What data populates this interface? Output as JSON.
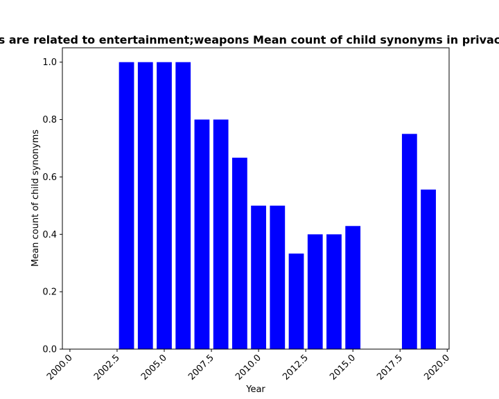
{
  "chart_data": {
    "type": "bar",
    "title": "...s are related to entertainment;weapons Mean count of child synonyms in privac...",
    "title_visible": "s are related to entertainment;weapons Mean count of child synonyms in privac",
    "xlabel": "Year",
    "ylabel": "Mean count of child synonyms",
    "x": [
      2003,
      2004,
      2005,
      2006,
      2007,
      2008,
      2009,
      2010,
      2011,
      2012,
      2013,
      2014,
      2015,
      2018,
      2019
    ],
    "values": [
      1.0,
      1.0,
      1.0,
      1.0,
      0.8,
      0.8,
      0.667,
      0.5,
      0.5,
      0.333,
      0.4,
      0.4,
      0.429,
      0.75,
      0.556
    ],
    "xlim": [
      1999.6,
      2020.1
    ],
    "ylim": [
      0,
      1.05
    ],
    "xticks": [
      "2000.0",
      "2002.5",
      "2005.0",
      "2007.5",
      "2010.0",
      "2012.5",
      "2015.0",
      "2017.5",
      "2020.0"
    ],
    "xtick_values": [
      2000.0,
      2002.5,
      2005.0,
      2007.5,
      2010.0,
      2012.5,
      2015.0,
      2017.5,
      2020.0
    ],
    "yticks": [
      "0.0",
      "0.2",
      "0.4",
      "0.6",
      "0.8",
      "1.0"
    ],
    "ytick_values": [
      0.0,
      0.2,
      0.4,
      0.6,
      0.8,
      1.0
    ],
    "bar_color": "#0000ff",
    "grid": false,
    "legend": "none"
  }
}
